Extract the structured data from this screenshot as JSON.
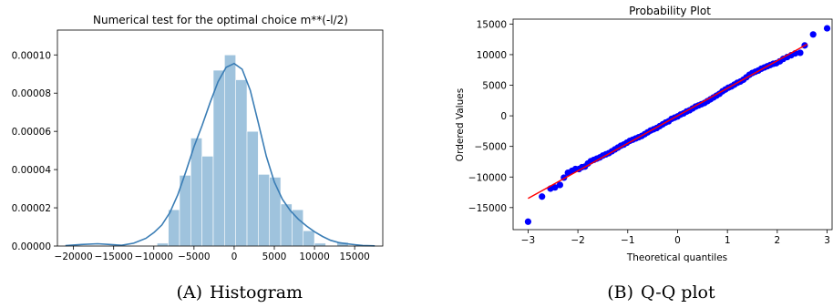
{
  "captions": {
    "a": {
      "label": "(A)",
      "text": "Histogram"
    },
    "b": {
      "label": "(B)",
      "text": "Q-Q plot"
    }
  },
  "colors": {
    "hist_fill": "#9fc3dd",
    "kde_line": "#3a7db5",
    "qq_points": "#0000ff",
    "qq_line": "#ff0000"
  },
  "chart_data": [
    {
      "type": "bar",
      "title": "Numerical test for the optimal choice m**(-l/2)",
      "xlabel": "",
      "ylabel": "",
      "xlim": [
        -22000,
        18500
      ],
      "ylim": [
        0,
        0.000113
      ],
      "xticks": [
        -20000,
        -15000,
        -10000,
        -5000,
        0,
        5000,
        10000,
        15000
      ],
      "xtick_labels": [
        "−20000",
        "−15000",
        "−10000",
        "−5000",
        "0",
        "5000",
        "10000",
        "15000"
      ],
      "yticks": [
        0,
        2e-05,
        4e-05,
        6e-05,
        8e-05,
        0.0001
      ],
      "ytick_labels": [
        "0.00000",
        "0.00002",
        "0.00004",
        "0.00006",
        "0.00008",
        "0.00010"
      ],
      "bin_edges": [
        -9600,
        -8200,
        -6800,
        -5400,
        -4000,
        -2600,
        -1200,
        200,
        1600,
        3000,
        4400,
        5800,
        7200,
        8600,
        10000,
        11400,
        12800,
        14200
      ],
      "bar_heights": [
        1.5e-06,
        1.9e-05,
        3.7e-05,
        5.65e-05,
        4.7e-05,
        9.2e-05,
        0.0001,
        8.7e-05,
        6e-05,
        3.75e-05,
        3.6e-05,
        2.2e-05,
        1.9e-05,
        8e-06,
        1.5e-06,
        0,
        2e-06
      ],
      "kde": {
        "x": [
          -21000,
          -19000,
          -17000,
          -15500,
          -14000,
          -12500,
          -11000,
          -10000,
          -9000,
          -8000,
          -7000,
          -6000,
          -5000,
          -4000,
          -3000,
          -2000,
          -1000,
          0,
          1000,
          2000,
          3000,
          4000,
          5000,
          6000,
          7000,
          8000,
          9000,
          10000,
          11000,
          12000,
          13000,
          14000,
          15000,
          16000,
          17500
        ],
        "y": [
          2e-07,
          8e-07,
          1.2e-06,
          8e-07,
          4e-07,
          1.5e-06,
          4e-06,
          7e-06,
          1.1e-05,
          1.75e-05,
          2.7e-05,
          3.9e-05,
          5.2e-05,
          6.3e-05,
          7.5e-05,
          8.6e-05,
          9.35e-05,
          9.55e-05,
          9.25e-05,
          8.15e-05,
          6.45e-05,
          4.7e-05,
          3.35e-05,
          2.45e-05,
          1.85e-05,
          1.4e-05,
          1.05e-05,
          7.5e-06,
          5e-06,
          3e-06,
          1.8e-06,
          1.2e-06,
          7e-07,
          3e-07,
          1e-07
        ]
      },
      "grid": false
    },
    {
      "type": "scatter",
      "title": "Probability Plot",
      "xlabel": "Theoretical quantiles",
      "ylabel": "Ordered Values",
      "xlim": [
        -3.3,
        3.1
      ],
      "ylim": [
        -18600,
        15800
      ],
      "xticks": [
        -3,
        -2,
        -1,
        0,
        1,
        2,
        3
      ],
      "xtick_labels": [
        "−3",
        "−2",
        "−1",
        "0",
        "1",
        "2",
        "3"
      ],
      "yticks": [
        -15000,
        -10000,
        -5000,
        0,
        5000,
        10000,
        15000
      ],
      "ytick_labels": [
        "−15000",
        "−10000",
        "−5000",
        "0",
        "5000",
        "10000",
        "15000"
      ],
      "fit_line": {
        "slope": 4500,
        "intercept": 0,
        "x_range": [
          -3,
          2.6
        ]
      },
      "points": {
        "x": [
          -3.0,
          -2.72,
          -2.55,
          -2.46,
          -2.36,
          -2.28,
          -2.2,
          -2.12,
          -2.05,
          -1.98,
          -1.92,
          -1.86,
          -1.8,
          -1.74,
          -1.68,
          -1.62,
          -1.56,
          -1.5,
          -1.44,
          -1.38,
          -1.32,
          -1.26,
          -1.2,
          -1.14,
          -1.08,
          -1.02,
          -0.96,
          -0.9,
          -0.84,
          -0.78,
          -0.72,
          -0.66,
          -0.6,
          -0.54,
          -0.48,
          -0.42,
          -0.36,
          -0.3,
          -0.24,
          -0.18,
          -0.12,
          -0.06,
          0.0,
          0.06,
          0.12,
          0.18,
          0.24,
          0.3,
          0.36,
          0.42,
          0.48,
          0.54,
          0.6,
          0.66,
          0.72,
          0.78,
          0.84,
          0.9,
          0.96,
          1.02,
          1.08,
          1.14,
          1.2,
          1.26,
          1.32,
          1.38,
          1.44,
          1.5,
          1.56,
          1.62,
          1.68,
          1.74,
          1.8,
          1.86,
          1.92,
          1.98,
          2.05,
          2.12,
          2.2,
          2.28,
          2.36,
          2.46,
          2.55,
          2.72,
          3.0
        ],
        "y": [
          -17300,
          -13200,
          -11900,
          -11700,
          -11300,
          -10100,
          -9300,
          -9000,
          -8700,
          -8700,
          -8400,
          -8300,
          -7800,
          -7400,
          -7200,
          -7000,
          -6800,
          -6500,
          -6300,
          -6100,
          -5800,
          -5500,
          -5200,
          -4900,
          -4700,
          -4400,
          -4100,
          -3900,
          -3700,
          -3500,
          -3300,
          -3000,
          -2700,
          -2400,
          -2200,
          -2000,
          -1700,
          -1400,
          -1100,
          -900,
          -500,
          -300,
          -100,
          200,
          400,
          700,
          900,
          1200,
          1500,
          1700,
          1900,
          2100,
          2400,
          2700,
          3000,
          3300,
          3600,
          4000,
          4300,
          4600,
          4800,
          5100,
          5400,
          5600,
          5900,
          6300,
          6700,
          7000,
          7200,
          7400,
          7700,
          7900,
          8100,
          8300,
          8500,
          8600,
          8900,
          9300,
          9600,
          9900,
          10200,
          10300,
          11500,
          13300,
          14300
        ]
      },
      "grid": false
    }
  ]
}
